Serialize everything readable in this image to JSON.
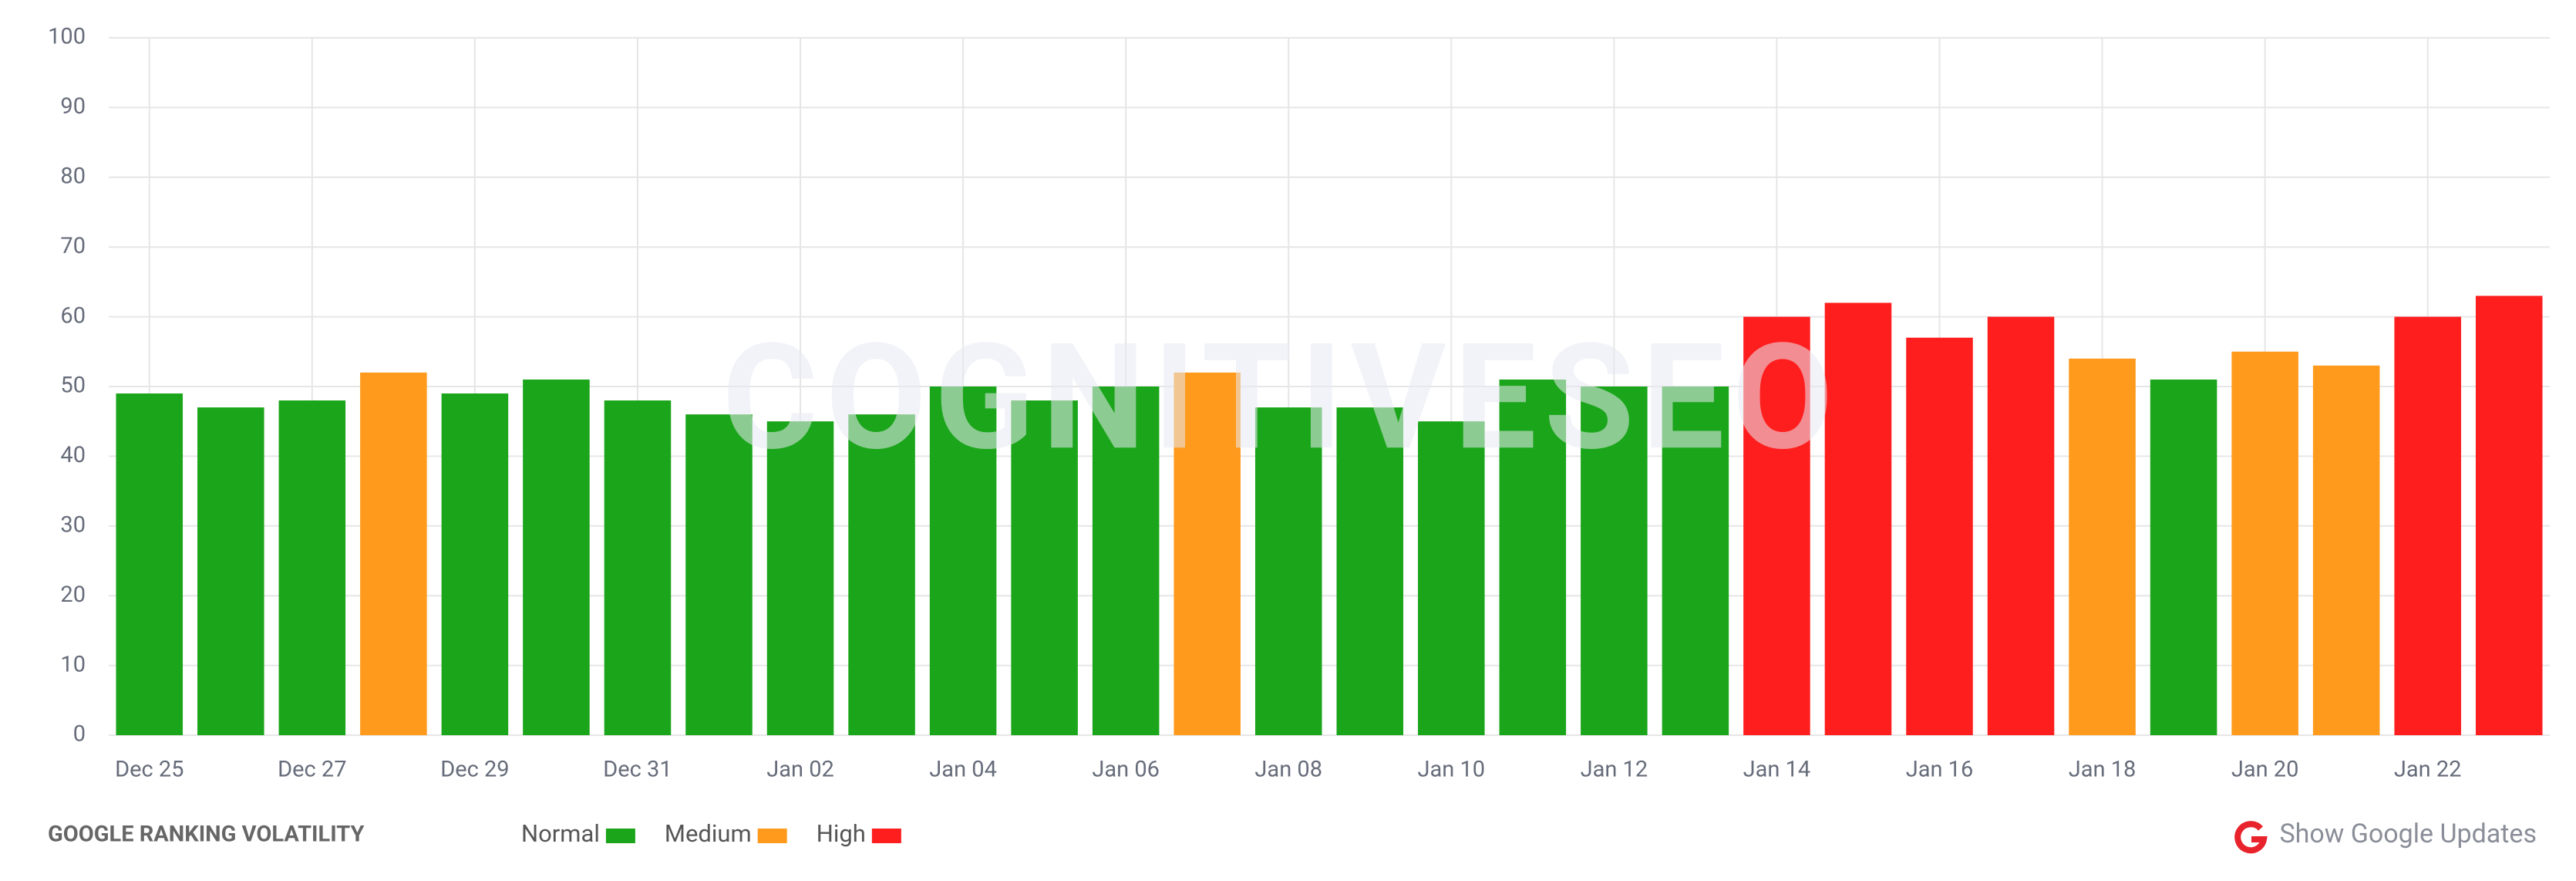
{
  "chart_data": {
    "type": "bar",
    "title": "GOOGLE RANKING VOLATILITY",
    "watermark": "COGNITIVESEO",
    "categories": [
      "Dec 25",
      null,
      "Dec 27",
      null,
      "Dec 29",
      null,
      "Dec 31",
      null,
      "Jan 02",
      null,
      "Jan 04",
      null,
      "Jan 06",
      null,
      "Jan 08",
      null,
      "Jan 10",
      null,
      "Jan 12",
      null,
      "Jan 14",
      null,
      "Jan 16",
      null,
      "Jan 18",
      null,
      "Jan 20",
      null,
      "Jan 22",
      null
    ],
    "values": [
      49,
      47,
      48,
      52,
      49,
      51,
      48,
      46,
      45,
      46,
      50,
      48,
      50,
      52,
      47,
      47,
      45,
      51,
      50,
      50,
      60,
      62,
      57,
      60,
      54,
      51,
      55,
      53,
      60,
      63
    ],
    "colors": [
      "#1aa51a",
      "#1aa51a",
      "#1aa51a",
      "#ff9a1c",
      "#1aa51a",
      "#1aa51a",
      "#1aa51a",
      "#1aa51a",
      "#1aa51a",
      "#1aa51a",
      "#1aa51a",
      "#1aa51a",
      "#1aa51a",
      "#ff9a1c",
      "#1aa51a",
      "#1aa51a",
      "#1aa51a",
      "#1aa51a",
      "#1aa51a",
      "#1aa51a",
      "#ff1e1e",
      "#ff1e1e",
      "#ff1e1e",
      "#ff1e1e",
      "#ff9a1c",
      "#1aa51a",
      "#ff9a1c",
      "#ff9a1c",
      "#ff1e1e",
      "#ff1e1e"
    ],
    "legend": [
      {
        "name": "Normal",
        "color": "#1aa51a"
      },
      {
        "name": "Medium",
        "color": "#ff9a1c"
      },
      {
        "name": "High",
        "color": "#ff1e1e"
      }
    ],
    "ylim": [
      0,
      100
    ],
    "yticks": [
      0,
      10,
      20,
      30,
      40,
      50,
      60,
      70,
      80,
      90,
      100
    ],
    "grid": true,
    "button": "Show Google Updates"
  }
}
